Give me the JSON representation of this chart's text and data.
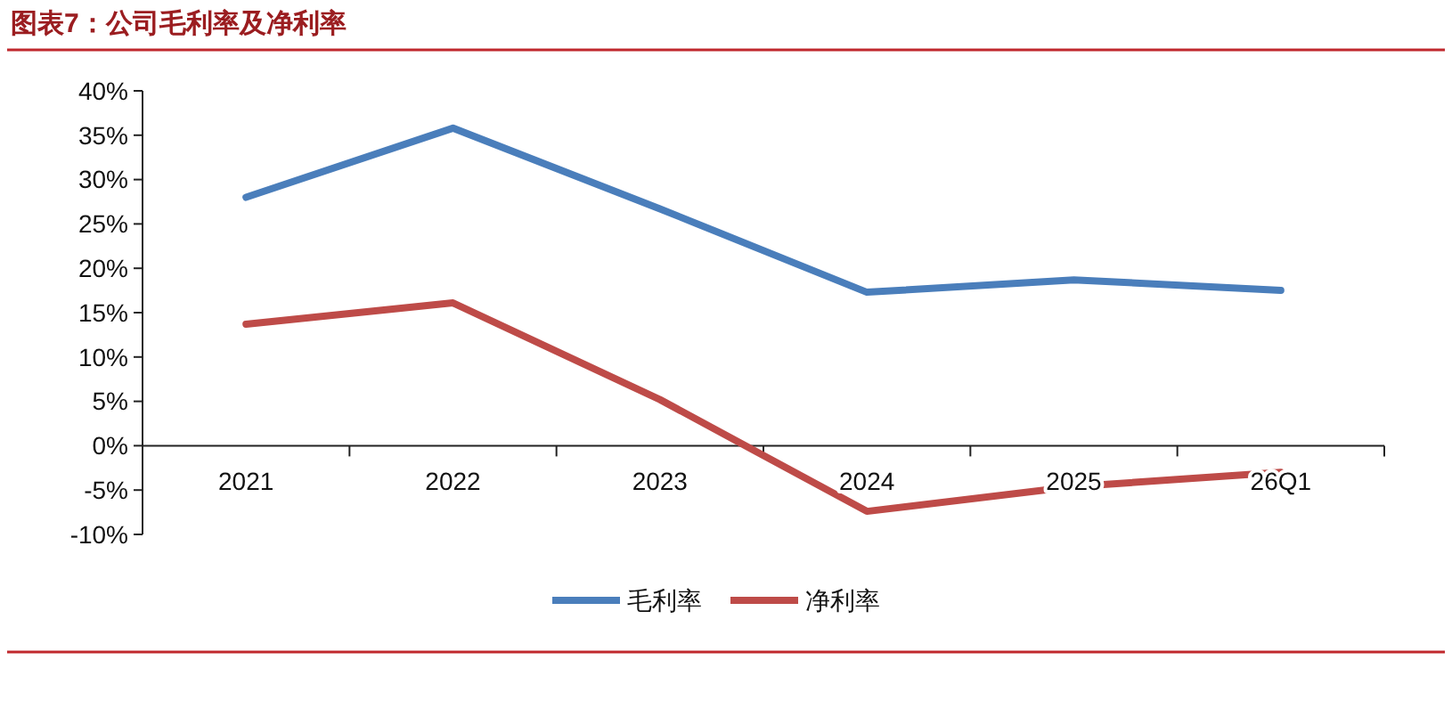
{
  "chart_data": {
    "type": "line",
    "title": "图表7：公司毛利率及净利率",
    "categories": [
      "2021",
      "2022",
      "2023",
      "2024",
      "2025",
      "26Q1"
    ],
    "series": [
      {
        "name": "毛利率",
        "color": "#4a7ebb",
        "values": [
          28,
          35.8,
          26.7,
          17.3,
          18.7,
          17.5
        ]
      },
      {
        "name": "净利率",
        "color": "#be4b48",
        "values": [
          13.7,
          16.1,
          5.2,
          -7.4,
          -4.6,
          -3.0
        ]
      }
    ],
    "ylim": [
      -10,
      40
    ],
    "yticks": [
      {
        "value": -10,
        "label": "-10%"
      },
      {
        "value": -5,
        "label": "-5%"
      },
      {
        "value": 0,
        "label": "0%"
      },
      {
        "value": 5,
        "label": "5%"
      },
      {
        "value": 10,
        "label": "10%"
      },
      {
        "value": 15,
        "label": "15%"
      },
      {
        "value": 20,
        "label": "20%"
      },
      {
        "value": 25,
        "label": "25%"
      },
      {
        "value": 30,
        "label": "30%"
      },
      {
        "value": 35,
        "label": "35%"
      },
      {
        "value": 40,
        "label": "40%"
      }
    ],
    "grid": false,
    "legend": "bottom",
    "marker": "none",
    "line_style": "solid"
  }
}
